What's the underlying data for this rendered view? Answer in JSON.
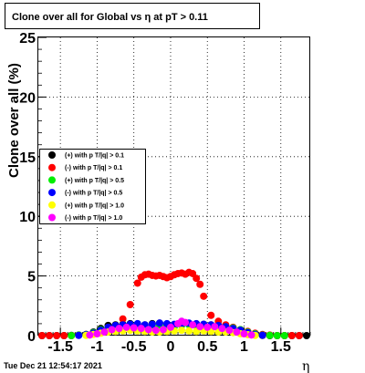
{
  "header": {
    "title": "Clone  over all for Global vs   η at pT > 0.11"
  },
  "footer": {
    "timestamp": "Tue Dec 21 12:54:17 2021"
  },
  "chart_data": {
    "type": "scatter",
    "title": "Clone  over all for Global vs   η at pT > 0.11",
    "xlabel": "η",
    "ylabel": "Clone  over all (%)",
    "xlim": [
      -1.8,
      1.9
    ],
    "ylim": [
      0,
      25
    ],
    "x_ticks": [
      -1.5,
      -1,
      -0.5,
      0,
      0.5,
      1,
      1.5
    ],
    "x_tick_labels": [
      "-1.5",
      "-1",
      "-0.5",
      "0",
      "0.5",
      "1",
      "1.5"
    ],
    "y_ticks": [
      0,
      5,
      10,
      15,
      20,
      25
    ],
    "y_tick_labels": [
      "0",
      "5",
      "10",
      "15",
      "20",
      "25"
    ],
    "grid": true,
    "legend_position": "left",
    "series": [
      {
        "name": "(+) with p T/|q| > 0.1",
        "color": "#000000",
        "x": [
          -1.75,
          -1.65,
          -1.55,
          -1.45,
          -1.35,
          -1.25,
          -1.15,
          -1.05,
          -0.95,
          -0.85,
          -0.75,
          -0.65,
          -0.55,
          -0.45,
          -0.35,
          -0.25,
          -0.15,
          -0.05,
          0.05,
          0.15,
          0.25,
          0.35,
          0.45,
          0.55,
          0.65,
          0.75,
          0.85,
          0.95,
          1.05,
          1.15,
          1.25,
          1.35,
          1.45,
          1.55,
          1.65,
          1.75,
          1.85
        ],
        "y": [
          0,
          0,
          0,
          0,
          0.02,
          0.05,
          0.1,
          0.3,
          0.6,
          0.85,
          0.9,
          0.95,
          1.0,
          0.95,
          0.9,
          1.0,
          1.05,
          0.95,
          0.9,
          1.0,
          1.0,
          0.95,
          0.95,
          0.9,
          0.85,
          0.75,
          0.6,
          0.35,
          0.1,
          0.05,
          0.02,
          0,
          0,
          0,
          0,
          0,
          0
        ]
      },
      {
        "name": "(-) with p T/|q| > 0.1",
        "color": "#ff0000",
        "x": [
          -1.75,
          -1.65,
          -1.55,
          -1.45,
          -1.35,
          -1.25,
          -1.15,
          -1.05,
          -0.95,
          -0.85,
          -0.75,
          -0.65,
          -0.55,
          -0.45,
          -0.4,
          -0.35,
          -0.3,
          -0.25,
          -0.2,
          -0.15,
          -0.1,
          -0.05,
          0,
          0.05,
          0.1,
          0.15,
          0.2,
          0.25,
          0.3,
          0.35,
          0.4,
          0.45,
          0.55,
          0.65,
          0.75,
          0.85,
          0.95,
          1.05,
          1.15,
          1.25,
          1.35,
          1.45,
          1.55,
          1.65,
          1.75
        ],
        "y": [
          0,
          0,
          0,
          0,
          0,
          0.05,
          0.1,
          0.2,
          0.35,
          0.5,
          0.6,
          1.4,
          2.6,
          4.4,
          4.9,
          5.1,
          5.15,
          5.05,
          5.0,
          5.05,
          4.95,
          4.85,
          4.95,
          5.1,
          5.2,
          5.25,
          5.15,
          5.3,
          5.2,
          4.8,
          4.3,
          3.3,
          1.7,
          1.2,
          0.9,
          0.7,
          0.5,
          0.35,
          0.2,
          0.1,
          0.05,
          0,
          0,
          0,
          0
        ]
      },
      {
        "name": "(+) with p T/|q| > 0.5",
        "color": "#00ee00",
        "x": [
          -1.35,
          -1.25,
          -1.15,
          -1.05,
          -0.95,
          -0.85,
          -0.75,
          -0.65,
          -0.55,
          -0.45,
          -0.35,
          -0.25,
          -0.15,
          -0.05,
          0.05,
          0.15,
          0.25,
          0.35,
          0.45,
          0.55,
          0.65,
          0.75,
          0.85,
          0.95,
          1.05,
          1.15,
          1.25,
          1.35,
          1.45,
          1.55
        ],
        "y": [
          0,
          0.05,
          0.1,
          0.25,
          0.5,
          0.7,
          0.75,
          0.8,
          0.85,
          0.8,
          0.75,
          0.8,
          0.85,
          0.8,
          0.75,
          0.85,
          0.9,
          0.85,
          0.8,
          0.85,
          0.8,
          0.75,
          0.65,
          0.5,
          0.3,
          0.15,
          0.05,
          0.02,
          0,
          0
        ]
      },
      {
        "name": "(-) with p T/|q| > 0.5",
        "color": "#0000ff",
        "x": [
          -1.25,
          -1.15,
          -1.05,
          -0.95,
          -0.85,
          -0.75,
          -0.65,
          -0.55,
          -0.45,
          -0.35,
          -0.25,
          -0.15,
          -0.05,
          0.05,
          0.15,
          0.25,
          0.35,
          0.45,
          0.55,
          0.65,
          0.75,
          0.85,
          0.95,
          1.05,
          1.15,
          1.25
        ],
        "y": [
          0.02,
          0.08,
          0.2,
          0.45,
          0.7,
          0.85,
          0.9,
          0.95,
          1.0,
          0.9,
          0.95,
          1.05,
          1.0,
          0.95,
          1.0,
          1.05,
          1.0,
          0.95,
          0.9,
          0.85,
          0.75,
          0.6,
          0.45,
          0.25,
          0.1,
          0.03
        ]
      },
      {
        "name": "(+) with p T/|q| > 1.0",
        "color": "#ffff00",
        "x": [
          -1.15,
          -1.05,
          -0.95,
          -0.85,
          -0.75,
          -0.65,
          -0.55,
          -0.45,
          -0.35,
          -0.25,
          -0.15,
          -0.05,
          0.05,
          0.15,
          0.25,
          0.35,
          0.45,
          0.55,
          0.65,
          0.75,
          0.85,
          0.95,
          1.05,
          1.15
        ],
        "y": [
          0.02,
          0.1,
          0.2,
          0.3,
          0.35,
          0.4,
          0.45,
          0.4,
          0.35,
          0.3,
          0.3,
          0.35,
          0.4,
          0.45,
          0.4,
          0.35,
          0.4,
          0.35,
          0.3,
          0.3,
          0.25,
          0.15,
          0.08,
          0.02
        ]
      },
      {
        "name": "(-) with p T/|q| > 1.0",
        "color": "#ff00ff",
        "x": [
          -1.1,
          -1.0,
          -0.9,
          -0.8,
          -0.7,
          -0.6,
          -0.5,
          -0.4,
          -0.3,
          -0.2,
          -0.1,
          0.0,
          0.1,
          0.15,
          0.2,
          0.3,
          0.4,
          0.5,
          0.6,
          0.7,
          0.8,
          0.9,
          1.0,
          1.1
        ],
        "y": [
          0.05,
          0.15,
          0.3,
          0.5,
          0.6,
          0.7,
          0.65,
          0.6,
          0.5,
          0.45,
          0.5,
          0.7,
          1.0,
          1.2,
          1.1,
          0.9,
          0.75,
          0.7,
          0.75,
          0.6,
          0.45,
          0.3,
          0.15,
          0.05
        ]
      }
    ]
  }
}
